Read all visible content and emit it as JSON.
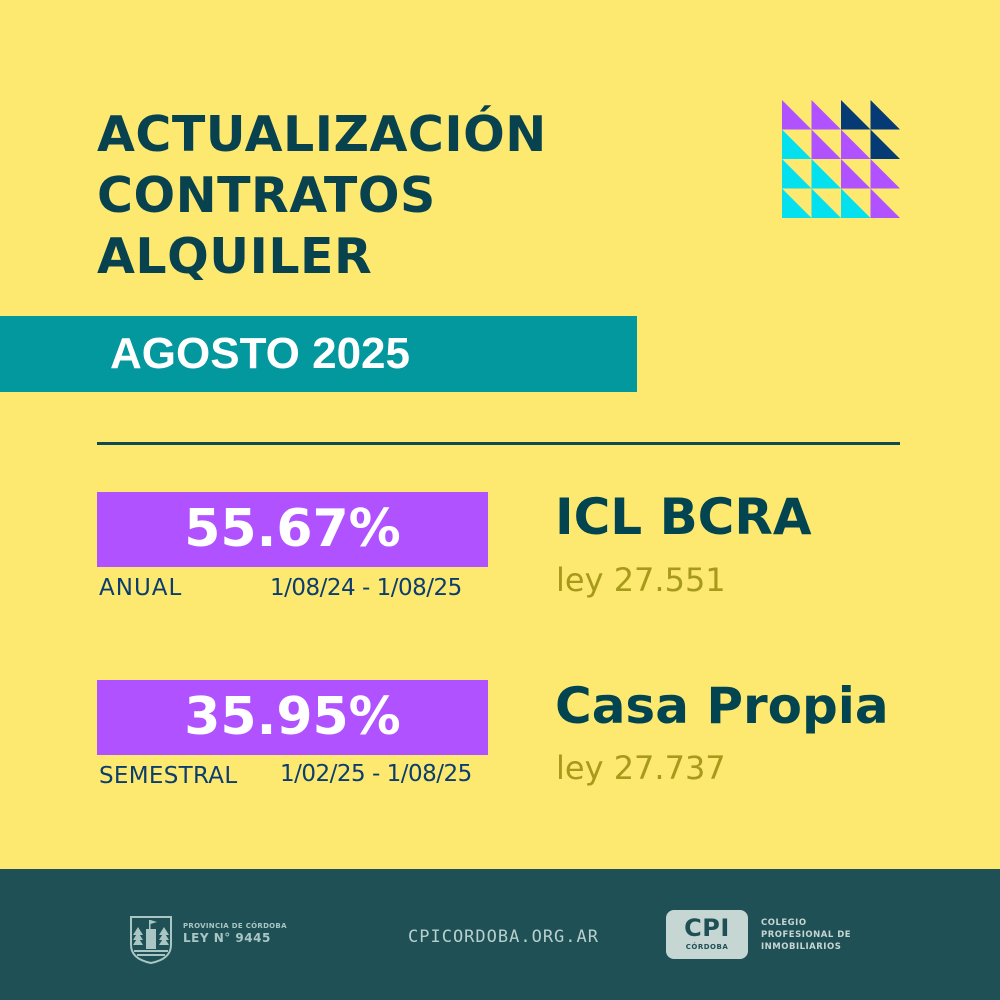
{
  "title": {
    "lines": [
      "ACTUALIZACIÓN",
      "CONTRATOS",
      "ALQUILER"
    ]
  },
  "banner": {
    "label": "AGOSTO 2025"
  },
  "indices": [
    {
      "percentage": "55.67%",
      "period_label": "ANUAL",
      "date_range": "1/08/24 - 1/08/25",
      "name": "ICL  BCRA",
      "law": "ley 27.551"
    },
    {
      "percentage": "35.95%",
      "period_label": "SEMESTRAL",
      "date_range": "1/02/25 - 1/08/25",
      "name": "Casa Propia",
      "law": "ley 27.737"
    }
  ],
  "decoration": {
    "icon": "triangle-grid-pattern-icon",
    "colors": {
      "purple": "#b052ff",
      "cyan": "#04e0ee",
      "navy": "#063a75"
    },
    "grid": [
      [
        "purple",
        "purple",
        "navy",
        "navy"
      ],
      [
        "cyan",
        "purple",
        "purple",
        "navy"
      ],
      [
        "cyan",
        "cyan",
        "purple",
        "purple"
      ],
      [
        "cyan",
        "cyan",
        "cyan",
        "purple"
      ]
    ]
  },
  "footer": {
    "province": {
      "icon": "cordoba-coat-of-arms-icon",
      "line1": "PROVINCIA DE CÓRDOBA",
      "line2": "LEY N° 9445"
    },
    "website": "CPICORDOBA.ORG.AR",
    "cpi": {
      "badge_big": "CPI",
      "badge_small": "CÓRDOBA",
      "text_lines": [
        "COLEGIO",
        "PROFESIONAL DE",
        "INMOBILIARIOS"
      ]
    }
  },
  "colors": {
    "background": "#fde870",
    "title": "#08424f",
    "banner": "#03979e",
    "percent_box": "#b052ff",
    "subtext": "#0b3d6e",
    "law_text": "#a79a1b",
    "footer": "#1f5055"
  }
}
